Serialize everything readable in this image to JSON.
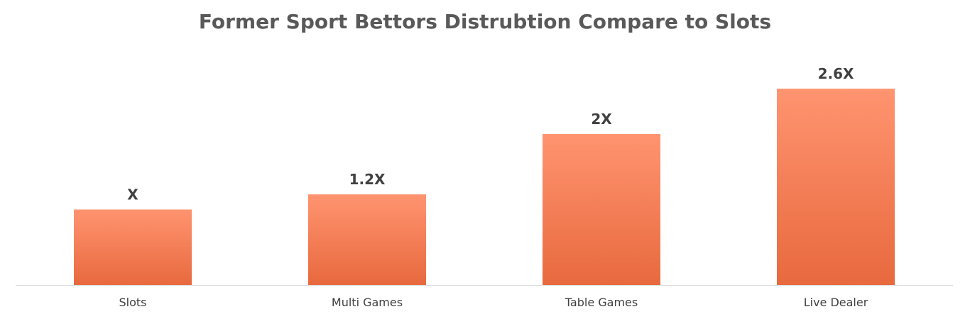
{
  "chart_data": {
    "type": "bar",
    "title": "Former Sport Bettors Distrubtion Compare to Slots",
    "xlabel": "",
    "ylabel": "",
    "categories": [
      "Slots",
      "Multi Games",
      "Table Games",
      "Live Dealer"
    ],
    "values": [
      1,
      1.2,
      2,
      2.6
    ],
    "data_labels": [
      "X",
      "1.2X",
      "2X",
      "2.6X"
    ],
    "ylim": [
      0,
      2.8
    ],
    "grid": false,
    "legend": "none",
    "colors": {
      "bar_top": "#FF9470",
      "bar_bottom": "#E8693E",
      "axis": "#D9D9D9",
      "title": "#595959",
      "text": "#404040"
    }
  }
}
